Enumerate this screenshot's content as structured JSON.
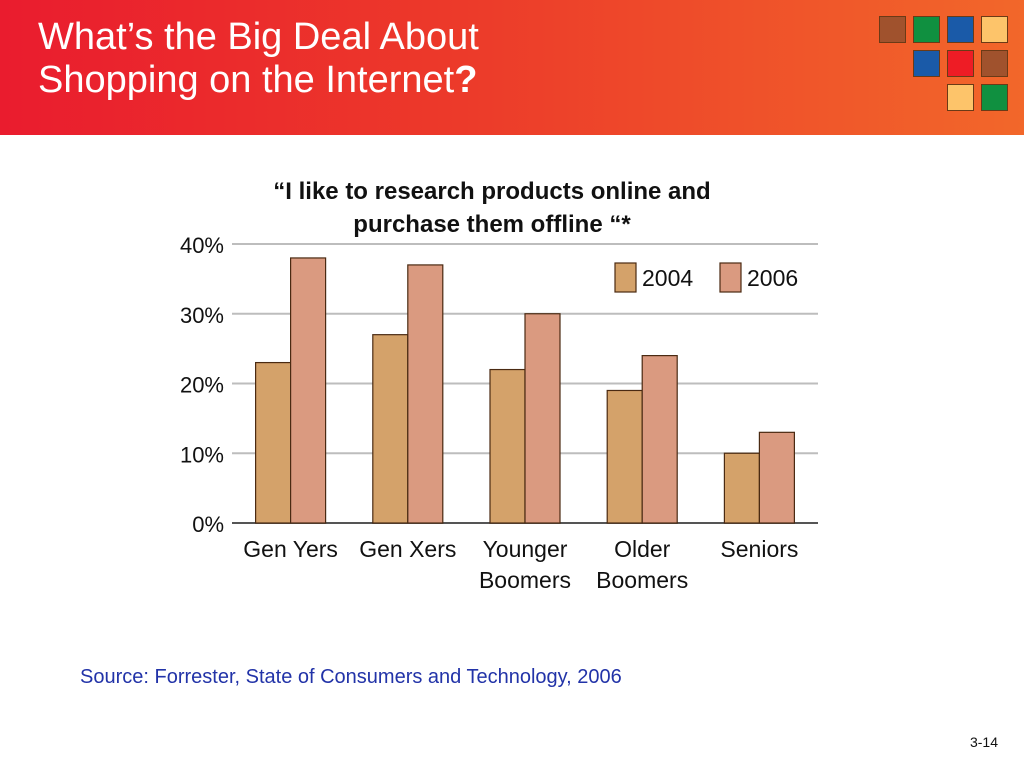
{
  "slide": {
    "title_line1": "What’s the Big Deal About",
    "title_line2": "Shopping on the Internet",
    "title_qmark": "?",
    "source": "Source: Forrester, State of Consumers and Technology, 2006",
    "page_number": "3-14"
  },
  "logo_tiles": [
    {
      "color": "#a0522d"
    },
    {
      "color": "#109040"
    },
    {
      "color": "#1a5aa8"
    },
    {
      "color": "#fdc46a"
    },
    {
      "color": "#1a5aa8"
    },
    {
      "color": "#ee1c25"
    },
    {
      "color": "#a0522d"
    },
    {
      "color": "#fdc46a"
    },
    {
      "color": "#109040"
    }
  ],
  "chart_data": {
    "type": "bar",
    "title_line1": "“I like to research products online and",
    "title_line2": "purchase them offline “*",
    "categories": [
      [
        "Gen Yers"
      ],
      [
        "Gen Xers"
      ],
      [
        "Younger",
        "Boomers"
      ],
      [
        "Older",
        "Boomers"
      ],
      [
        "Seniors"
      ]
    ],
    "series": [
      {
        "name": "2004",
        "color": "#d4a26a",
        "values": [
          23,
          27,
          22,
          19,
          10
        ]
      },
      {
        "name": "2006",
        "color": "#da9a80",
        "values": [
          38,
          37,
          30,
          24,
          13
        ]
      }
    ],
    "yticks": [
      "0%",
      "10%",
      "20%",
      "30%",
      "40%"
    ],
    "ylim": [
      0,
      40
    ],
    "grid": true,
    "legend": "top-right"
  }
}
